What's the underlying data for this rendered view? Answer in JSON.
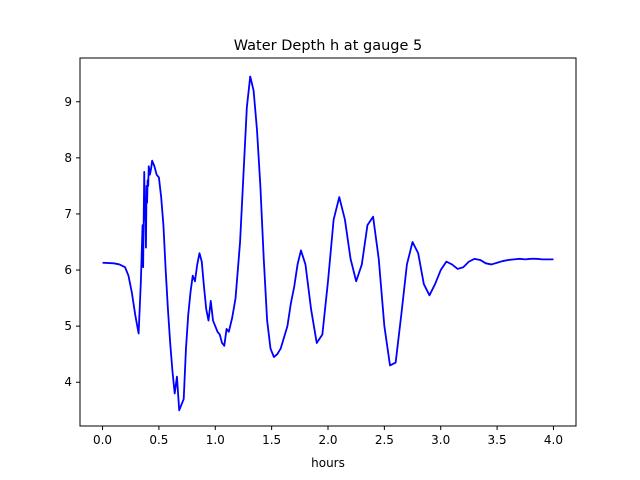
{
  "chart_data": {
    "type": "line",
    "title": "Water Depth h at gauge 5",
    "xlabel": "hours",
    "ylabel": "",
    "xlim": [
      -0.2,
      4.2
    ],
    "ylim": [
      3.22,
      9.78
    ],
    "xticks": [
      "0.0",
      "0.5",
      "1.0",
      "1.5",
      "2.0",
      "2.5",
      "3.0",
      "3.5",
      "4.0"
    ],
    "yticks": [
      "4",
      "5",
      "6",
      "7",
      "8",
      "9"
    ],
    "grid": false,
    "line_color": "#0000ff",
    "series": [
      {
        "x": [
          0.0,
          0.1,
          0.15,
          0.2,
          0.23,
          0.26,
          0.29,
          0.32,
          0.34,
          0.355,
          0.36,
          0.37,
          0.375,
          0.38,
          0.385,
          0.39,
          0.395,
          0.4,
          0.405,
          0.41,
          0.42,
          0.43,
          0.44,
          0.46,
          0.48,
          0.5,
          0.52,
          0.54,
          0.56,
          0.58,
          0.6,
          0.62,
          0.64,
          0.66,
          0.68,
          0.7,
          0.72,
          0.74,
          0.75,
          0.76,
          0.78,
          0.8,
          0.82,
          0.84,
          0.86,
          0.88,
          0.9,
          0.92,
          0.94,
          0.96,
          0.98,
          1.0,
          1.02,
          1.04,
          1.06,
          1.08,
          1.1,
          1.12,
          1.15,
          1.18,
          1.2,
          1.22,
          1.25,
          1.28,
          1.31,
          1.34,
          1.37,
          1.4,
          1.43,
          1.46,
          1.49,
          1.52,
          1.55,
          1.58,
          1.61,
          1.64,
          1.67,
          1.7,
          1.73,
          1.76,
          1.8,
          1.85,
          1.9,
          1.95,
          2.0,
          2.05,
          2.1,
          2.15,
          2.2,
          2.25,
          2.3,
          2.35,
          2.4,
          2.45,
          2.5,
          2.55,
          2.6,
          2.65,
          2.7,
          2.75,
          2.8,
          2.85,
          2.9,
          2.95,
          3.0,
          3.05,
          3.1,
          3.15,
          3.2,
          3.25,
          3.3,
          3.35,
          3.4,
          3.45,
          3.5,
          3.55,
          3.6,
          3.65,
          3.7,
          3.75,
          3.8,
          3.85,
          3.9,
          3.95,
          4.0
        ],
        "values": [
          6.13,
          6.12,
          6.1,
          6.05,
          5.9,
          5.6,
          5.2,
          4.87,
          5.8,
          6.8,
          6.05,
          7.75,
          6.9,
          7.3,
          6.4,
          7.5,
          7.2,
          7.6,
          7.5,
          7.85,
          7.7,
          7.8,
          7.95,
          7.85,
          7.7,
          7.65,
          7.3,
          6.8,
          6.0,
          5.3,
          4.7,
          4.2,
          3.8,
          4.1,
          3.5,
          3.6,
          3.7,
          4.6,
          4.9,
          5.2,
          5.6,
          5.9,
          5.8,
          6.1,
          6.3,
          6.15,
          5.7,
          5.3,
          5.1,
          5.45,
          5.1,
          5.0,
          4.9,
          4.85,
          4.7,
          4.65,
          4.95,
          4.9,
          5.15,
          5.5,
          6.0,
          6.5,
          7.7,
          8.9,
          9.45,
          9.2,
          8.5,
          7.5,
          6.2,
          5.1,
          4.6,
          4.45,
          4.5,
          4.6,
          4.8,
          5.0,
          5.4,
          5.7,
          6.1,
          6.35,
          6.1,
          5.3,
          4.7,
          4.85,
          5.8,
          6.9,
          7.3,
          6.9,
          6.2,
          5.8,
          6.1,
          6.8,
          6.95,
          6.2,
          5.0,
          4.3,
          4.35,
          5.2,
          6.1,
          6.5,
          6.3,
          5.75,
          5.55,
          5.75,
          6.0,
          6.15,
          6.1,
          6.02,
          6.05,
          6.15,
          6.2,
          6.18,
          6.12,
          6.1,
          6.13,
          6.16,
          6.18,
          6.19,
          6.2,
          6.19,
          6.2,
          6.2,
          6.19,
          6.19,
          6.19
        ]
      }
    ]
  }
}
